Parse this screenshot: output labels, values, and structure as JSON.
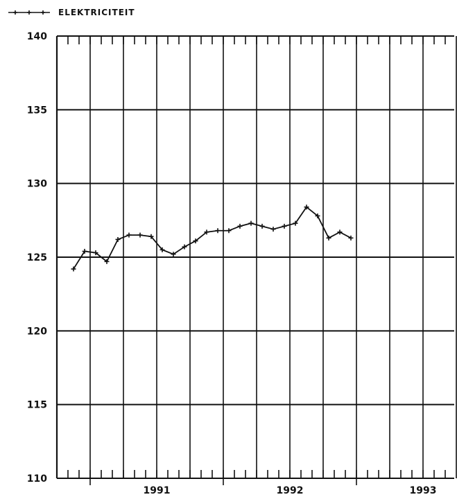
{
  "chart_data": {
    "type": "line",
    "title": "",
    "xlabel": "",
    "ylabel": "",
    "ylim": [
      110,
      140
    ],
    "yticks": [
      "110",
      "115",
      "120",
      "125",
      "130",
      "135",
      "140"
    ],
    "years": [
      "1991",
      "1992",
      "1993"
    ],
    "x_range_months": [
      "1990-10",
      "1993-09"
    ],
    "grid": true,
    "legend_position": "top-left",
    "series": [
      {
        "name": "ELEKTRICITEIT",
        "color": "#111111",
        "marker": "plus",
        "x": [
          "1990-11",
          "1990-12",
          "1991-01",
          "1991-02",
          "1991-03",
          "1991-04",
          "1991-05",
          "1991-06",
          "1991-07",
          "1991-08",
          "1991-09",
          "1991-10",
          "1991-11",
          "1991-12",
          "1992-01",
          "1992-02",
          "1992-03",
          "1992-04",
          "1992-05",
          "1992-06",
          "1992-07",
          "1992-08",
          "1992-09",
          "1992-10",
          "1992-11",
          "1992-12",
          "1993-01"
        ],
        "values": [
          124.2,
          125.4,
          125.3,
          124.7,
          126.2,
          126.5,
          126.5,
          126.4,
          125.5,
          125.2,
          125.7,
          126.1,
          126.7,
          126.8,
          126.8,
          127.1,
          127.3,
          127.1,
          126.9,
          127.1,
          127.3,
          128.4,
          127.8,
          126.3,
          126.7,
          126.3,
          null
        ]
      }
    ]
  }
}
